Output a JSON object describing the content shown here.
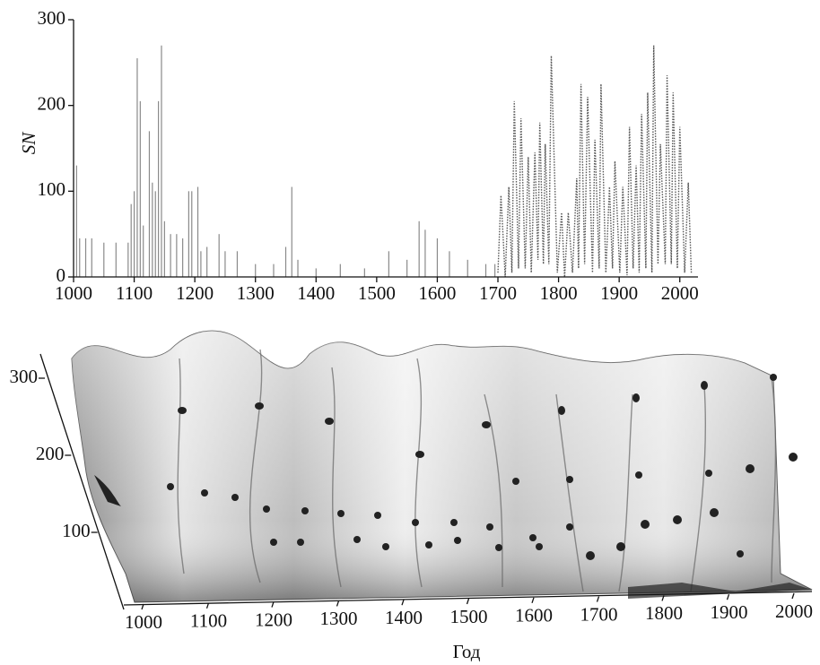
{
  "chart_data": [
    {
      "type": "spikes",
      "ylabel": "SN",
      "xlim": [
        1000,
        2030
      ],
      "ylim": [
        0,
        300
      ],
      "xticks": [
        1000,
        1100,
        1200,
        1300,
        1400,
        1500,
        1600,
        1700,
        1800,
        1900,
        2000
      ],
      "yticks": [
        0,
        100,
        200,
        300
      ],
      "series": [
        {
          "style": "spike",
          "color": "#8a8a8a",
          "x": [
            1005,
            1010,
            1020,
            1030,
            1050,
            1070,
            1090,
            1095,
            1100,
            1105,
            1110,
            1115,
            1125,
            1130,
            1135,
            1140,
            1145,
            1150,
            1160,
            1170,
            1180,
            1190,
            1195,
            1205,
            1210,
            1220,
            1240,
            1250,
            1270,
            1300,
            1330,
            1350,
            1360,
            1370,
            1400,
            1440,
            1480,
            1520,
            1550,
            1570,
            1580,
            1600,
            1620,
            1650,
            1680,
            1695
          ],
          "values": [
            130,
            45,
            45,
            45,
            40,
            40,
            40,
            85,
            100,
            255,
            205,
            60,
            170,
            110,
            100,
            205,
            270,
            65,
            50,
            50,
            45,
            100,
            100,
            105,
            30,
            35,
            50,
            30,
            30,
            15,
            15,
            35,
            105,
            20,
            10,
            15,
            10,
            30,
            20,
            65,
            55,
            45,
            30,
            20,
            15,
            15
          ]
        },
        {
          "style": "dotted",
          "color": "#555555",
          "x": [
            1700,
            1705,
            1712,
            1718,
            1723,
            1727,
            1734,
            1738,
            1745,
            1750,
            1755,
            1761,
            1766,
            1769,
            1775,
            1778,
            1784,
            1788,
            1798,
            1805,
            1810,
            1816,
            1823,
            1830,
            1833,
            1837,
            1843,
            1848,
            1856,
            1860,
            1867,
            1870,
            1878,
            1884,
            1889,
            1893,
            1901,
            1906,
            1913,
            1917,
            1923,
            1928,
            1933,
            1937,
            1944,
            1947,
            1954,
            1957,
            1964,
            1968,
            1976,
            1979,
            1986,
            1989,
            1996,
            2000,
            2008,
            2014,
            2019
          ],
          "values": [
            5,
            95,
            0,
            105,
            5,
            205,
            10,
            185,
            10,
            140,
            5,
            145,
            20,
            180,
            15,
            155,
            15,
            258,
            5,
            75,
            0,
            75,
            5,
            115,
            10,
            225,
            15,
            210,
            5,
            160,
            10,
            225,
            5,
            105,
            10,
            135,
            5,
            105,
            2,
            175,
            10,
            130,
            5,
            190,
            10,
            215,
            5,
            270,
            15,
            155,
            15,
            235,
            15,
            215,
            10,
            175,
            5,
            110,
            5
          ]
        }
      ]
    },
    {
      "type": "surface",
      "xlabel": "Год",
      "xlim": [
        1000,
        2000
      ],
      "zlim": [
        0,
        300
      ],
      "xticks": [
        1000,
        1100,
        1200,
        1300,
        1400,
        1500,
        1600,
        1700,
        1800,
        1900,
        2000
      ],
      "zticks": [
        100,
        200,
        300
      ]
    }
  ]
}
